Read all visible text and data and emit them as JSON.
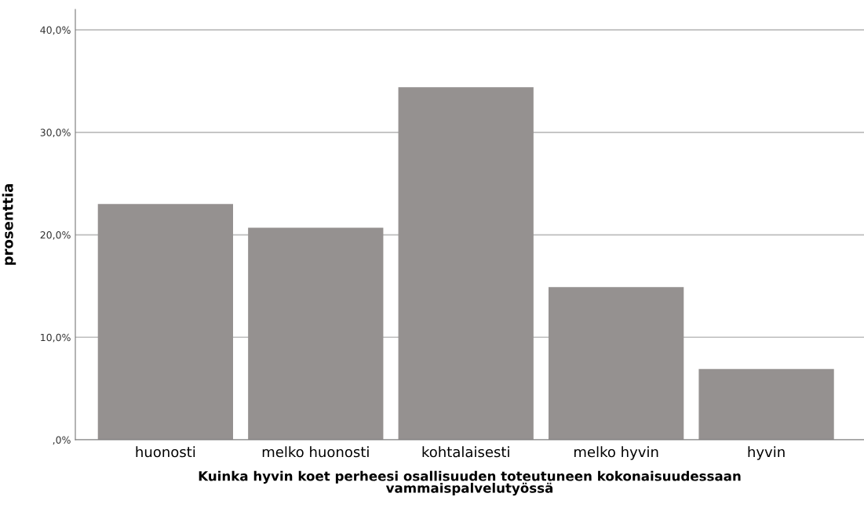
{
  "chart_data": {
    "type": "bar",
    "xlabel": "Kuinka hyvin koet perheesi osallisuuden toteutuneen kokonaisuudessaan\nvammaispalvelutyössä",
    "ylabel": "prosenttia",
    "categories": [
      "huonosti",
      "melko huonosti",
      "kohtalaisesti",
      "melko hyvin",
      "hyvin"
    ],
    "values": [
      23.0,
      20.7,
      34.4,
      14.9,
      6.9
    ],
    "color": "#959190",
    "ylim": [
      0,
      42
    ],
    "yticks": [
      {
        "value": 0,
        "label": ",0%"
      },
      {
        "value": 10,
        "label": "10,0%"
      },
      {
        "value": 20,
        "label": "20,0%"
      },
      {
        "value": 30,
        "label": "30,0%"
      },
      {
        "value": 40,
        "label": "40,0%"
      }
    ],
    "grid": "y"
  }
}
